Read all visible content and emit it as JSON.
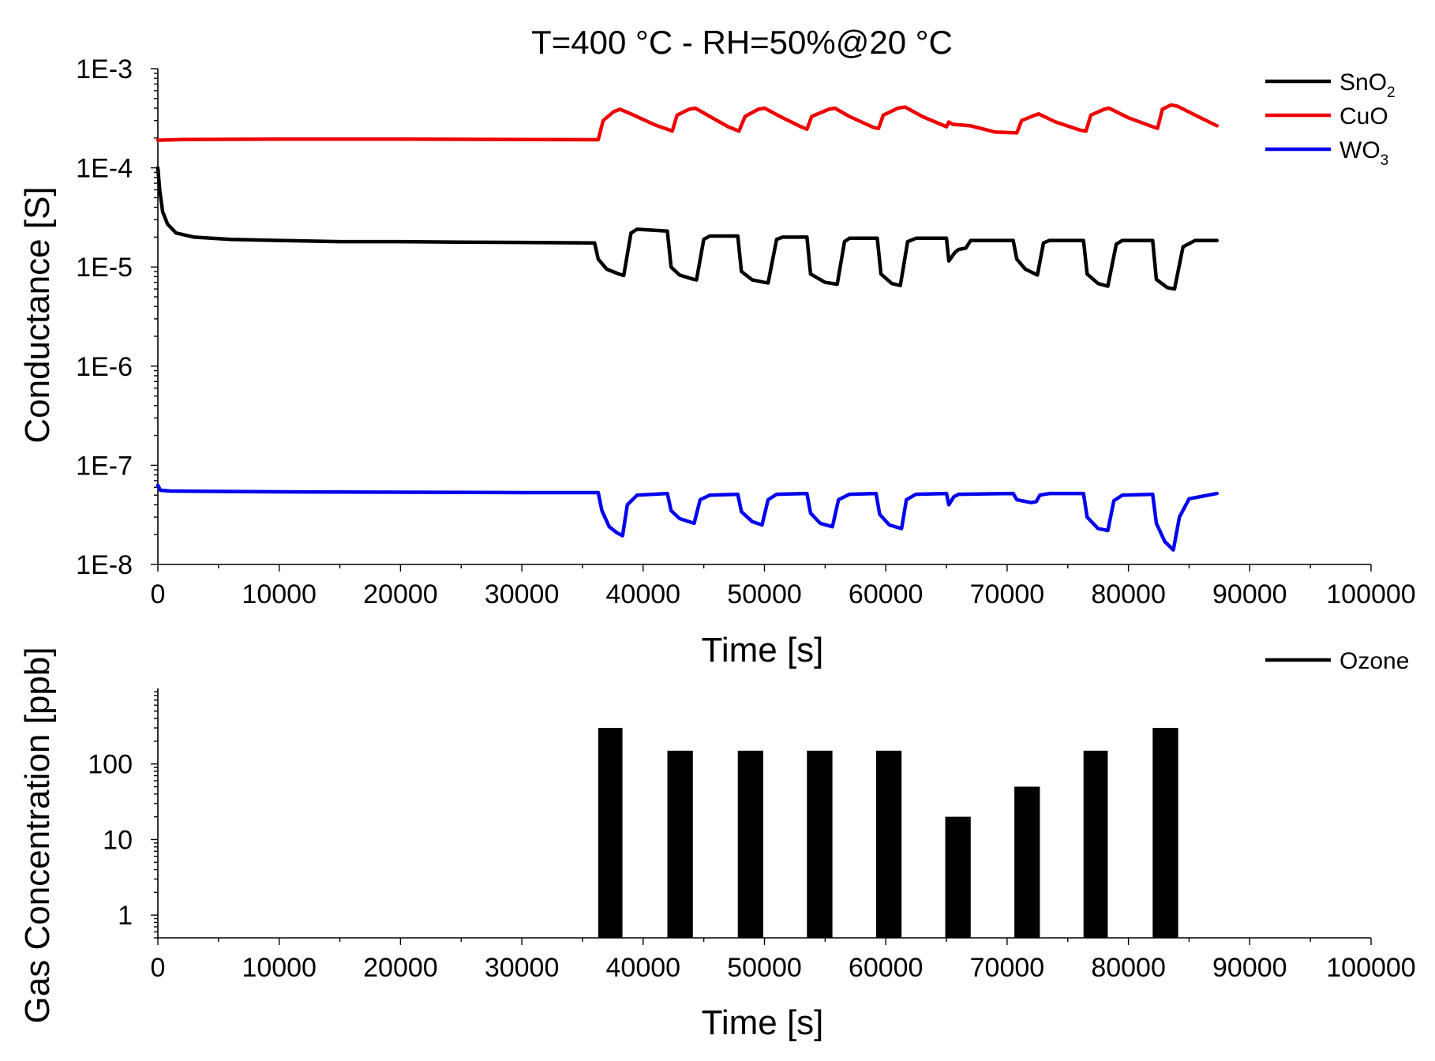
{
  "chart_data": [
    {
      "type": "line",
      "title": "T=400 °C - RH=50%@20 °C",
      "xlabel": "Time [s]",
      "ylabel": "Conductance [S]",
      "xlim": [
        0,
        100000
      ],
      "ylim": [
        1e-08,
        0.001
      ],
      "yscale": "log",
      "grid": false,
      "legend_position": "top-right",
      "x_ticks": [
        "0",
        "10000",
        "20000",
        "30000",
        "40000",
        "50000",
        "60000",
        "70000",
        "80000",
        "90000",
        "100000"
      ],
      "y_ticks": [
        "1E-3",
        "1E-4",
        "1E-5",
        "1E-6",
        "1E-7",
        "1E-8"
      ],
      "series": [
        {
          "name": "SnO2",
          "label_base": "SnO",
          "label_sub": "2",
          "color": "#000000",
          "points": [
            [
              0,
              0.0001
            ],
            [
              150,
              6e-05
            ],
            [
              400,
              3.6e-05
            ],
            [
              800,
              2.7e-05
            ],
            [
              1500,
              2.2e-05
            ],
            [
              3000,
              2e-05
            ],
            [
              6000,
              1.9e-05
            ],
            [
              10000,
              1.85e-05
            ],
            [
              15000,
              1.8e-05
            ],
            [
              20000,
              1.8e-05
            ],
            [
              25000,
              1.78e-05
            ],
            [
              30000,
              1.77e-05
            ],
            [
              36000,
              1.75e-05
            ],
            [
              36300,
              1.2e-05
            ],
            [
              37000,
              9.5e-06
            ],
            [
              38000,
              8.5e-06
            ],
            [
              38400,
              8.2e-06
            ],
            [
              39000,
              2.2e-05
            ],
            [
              39500,
              2.4e-05
            ],
            [
              42000,
              2.3e-05
            ],
            [
              42300,
              1e-05
            ],
            [
              43000,
              8.3e-06
            ],
            [
              44000,
              7.6e-06
            ],
            [
              44400,
              7.4e-06
            ],
            [
              45000,
              1.9e-05
            ],
            [
              45500,
              2.05e-05
            ],
            [
              47800,
              2.05e-05
            ],
            [
              48100,
              9e-06
            ],
            [
              49000,
              7.4e-06
            ],
            [
              50000,
              7e-06
            ],
            [
              50300,
              6.9e-06
            ],
            [
              51000,
              1.9e-05
            ],
            [
              51500,
              2e-05
            ],
            [
              53500,
              2e-05
            ],
            [
              53800,
              8.5e-06
            ],
            [
              55000,
              7e-06
            ],
            [
              56000,
              6.7e-06
            ],
            [
              56600,
              1.8e-05
            ],
            [
              57000,
              1.95e-05
            ],
            [
              59300,
              1.95e-05
            ],
            [
              59600,
              8.5e-06
            ],
            [
              60500,
              6.8e-06
            ],
            [
              61200,
              6.5e-06
            ],
            [
              61800,
              1.8e-05
            ],
            [
              62500,
              1.95e-05
            ],
            [
              65000,
              1.95e-05
            ],
            [
              65200,
              1.15e-05
            ],
            [
              65700,
              1.4e-05
            ],
            [
              66000,
              1.5e-05
            ],
            [
              66600,
              1.55e-05
            ],
            [
              67000,
              1.85e-05
            ],
            [
              70500,
              1.85e-05
            ],
            [
              70800,
              1.2e-05
            ],
            [
              71500,
              9.5e-06
            ],
            [
              72500,
              8.3e-06
            ],
            [
              73000,
              1.75e-05
            ],
            [
              73500,
              1.85e-05
            ],
            [
              76300,
              1.85e-05
            ],
            [
              76600,
              8.5e-06
            ],
            [
              77500,
              6.8e-06
            ],
            [
              78300,
              6.4e-06
            ],
            [
              79000,
              1.7e-05
            ],
            [
              79500,
              1.85e-05
            ],
            [
              82000,
              1.85e-05
            ],
            [
              82300,
              7.5e-06
            ],
            [
              83200,
              6.2e-06
            ],
            [
              83800,
              6e-06
            ],
            [
              84500,
              1.6e-05
            ],
            [
              85500,
              1.85e-05
            ],
            [
              87300,
              1.85e-05
            ]
          ]
        },
        {
          "name": "CuO",
          "label_base": "CuO",
          "label_sub": "",
          "color": "#ee0000",
          "points": [
            [
              0,
              0.00019
            ],
            [
              2000,
              0.000193
            ],
            [
              10000,
              0.000195
            ],
            [
              20000,
              0.000195
            ],
            [
              30000,
              0.000193
            ],
            [
              36300,
              0.000192
            ],
            [
              36700,
              0.0003
            ],
            [
              37600,
              0.00037
            ],
            [
              38100,
              0.00039
            ],
            [
              39000,
              0.00035
            ],
            [
              41000,
              0.00027
            ],
            [
              42000,
              0.000245
            ],
            [
              42400,
              0.000235
            ],
            [
              42800,
              0.00034
            ],
            [
              43800,
              0.00039
            ],
            [
              44300,
              0.0004
            ],
            [
              45500,
              0.00033
            ],
            [
              47000,
              0.00026
            ],
            [
              47900,
              0.000235
            ],
            [
              48400,
              0.00033
            ],
            [
              49500,
              0.00039
            ],
            [
              50000,
              0.0004
            ],
            [
              51500,
              0.00032
            ],
            [
              53000,
              0.00026
            ],
            [
              53500,
              0.000245
            ],
            [
              53900,
              0.00033
            ],
            [
              55300,
              0.00039
            ],
            [
              55800,
              0.0004
            ],
            [
              57000,
              0.00033
            ],
            [
              59000,
              0.000255
            ],
            [
              59400,
              0.00025
            ],
            [
              59800,
              0.00034
            ],
            [
              61000,
              0.0004
            ],
            [
              61600,
              0.00041
            ],
            [
              63000,
              0.00033
            ],
            [
              65000,
              0.00026
            ],
            [
              65200,
              0.00029
            ],
            [
              65500,
              0.000275
            ],
            [
              67000,
              0.000265
            ],
            [
              69000,
              0.00023
            ],
            [
              70800,
              0.000225
            ],
            [
              71200,
              0.0003
            ],
            [
              72300,
              0.00034
            ],
            [
              72600,
              0.00035
            ],
            [
              74000,
              0.00029
            ],
            [
              76000,
              0.00024
            ],
            [
              76500,
              0.000235
            ],
            [
              76900,
              0.00034
            ],
            [
              78000,
              0.00039
            ],
            [
              78400,
              0.0004
            ],
            [
              80000,
              0.00032
            ],
            [
              82000,
              0.00026
            ],
            [
              82400,
              0.00025
            ],
            [
              82800,
              0.00039
            ],
            [
              83500,
              0.00043
            ],
            [
              84000,
              0.00042
            ],
            [
              85500,
              0.00034
            ],
            [
              87300,
              0.000265
            ]
          ]
        },
        {
          "name": "WO3",
          "label_base": "WO",
          "label_sub": "3",
          "color": "#0000ee",
          "points": [
            [
              0,
              6.3e-08
            ],
            [
              200,
              5.6e-08
            ],
            [
              1000,
              5.5e-08
            ],
            [
              5000,
              5.45e-08
            ],
            [
              10000,
              5.4e-08
            ],
            [
              20000,
              5.35e-08
            ],
            [
              30000,
              5.3e-08
            ],
            [
              36300,
              5.3e-08
            ],
            [
              36600,
              3.5e-08
            ],
            [
              37200,
              2.4e-08
            ],
            [
              37800,
              2.1e-08
            ],
            [
              38300,
              1.95e-08
            ],
            [
              38700,
              4e-08
            ],
            [
              39500,
              5e-08
            ],
            [
              42000,
              5.2e-08
            ],
            [
              42300,
              3.5e-08
            ],
            [
              43000,
              2.9e-08
            ],
            [
              44200,
              2.6e-08
            ],
            [
              44700,
              4.5e-08
            ],
            [
              45500,
              5e-08
            ],
            [
              47800,
              5.1e-08
            ],
            [
              48100,
              3.4e-08
            ],
            [
              49000,
              2.7e-08
            ],
            [
              49800,
              2.5e-08
            ],
            [
              50300,
              4.5e-08
            ],
            [
              51000,
              5.1e-08
            ],
            [
              53500,
              5.2e-08
            ],
            [
              53800,
              3.3e-08
            ],
            [
              54600,
              2.6e-08
            ],
            [
              55600,
              2.4e-08
            ],
            [
              56100,
              4.5e-08
            ],
            [
              57000,
              5.1e-08
            ],
            [
              59200,
              5.2e-08
            ],
            [
              59500,
              3.2e-08
            ],
            [
              60300,
              2.5e-08
            ],
            [
              61300,
              2.3e-08
            ],
            [
              61700,
              4.5e-08
            ],
            [
              62500,
              5.1e-08
            ],
            [
              65000,
              5.2e-08
            ],
            [
              65200,
              4e-08
            ],
            [
              65600,
              4.8e-08
            ],
            [
              66000,
              5.1e-08
            ],
            [
              70500,
              5.2e-08
            ],
            [
              70800,
              4.5e-08
            ],
            [
              72000,
              4.2e-08
            ],
            [
              72400,
              4.3e-08
            ],
            [
              72700,
              5e-08
            ],
            [
              73500,
              5.2e-08
            ],
            [
              76300,
              5.2e-08
            ],
            [
              76600,
              3e-08
            ],
            [
              77500,
              2.3e-08
            ],
            [
              78300,
              2.2e-08
            ],
            [
              78800,
              4.4e-08
            ],
            [
              79500,
              5e-08
            ],
            [
              82000,
              5.1e-08
            ],
            [
              82300,
              2.6e-08
            ],
            [
              83000,
              1.7e-08
            ],
            [
              83700,
              1.4e-08
            ],
            [
              84200,
              3e-08
            ],
            [
              85000,
              4.6e-08
            ],
            [
              87300,
              5.2e-08
            ]
          ]
        }
      ]
    },
    {
      "type": "bar",
      "xlabel": "Time [s]",
      "ylabel": "Gas Concentration [ppb]",
      "xlim": [
        0,
        100000
      ],
      "ylim": [
        0.5,
        1000
      ],
      "yscale": "log",
      "grid": false,
      "legend_position": "top-right",
      "x_ticks": [
        "0",
        "10000",
        "20000",
        "30000",
        "40000",
        "50000",
        "60000",
        "70000",
        "80000",
        "90000",
        "100000"
      ],
      "y_ticks": [
        "1",
        "10",
        "100"
      ],
      "y_tick_values": [
        1,
        10,
        100
      ],
      "series": [
        {
          "name": "Ozone",
          "color": "#000000",
          "bars": [
            {
              "start": 36300,
              "end": 38300,
              "value": 300
            },
            {
              "start": 42000,
              "end": 44100,
              "value": 150
            },
            {
              "start": 47800,
              "end": 49900,
              "value": 150
            },
            {
              "start": 53500,
              "end": 55600,
              "value": 150
            },
            {
              "start": 59200,
              "end": 61300,
              "value": 150
            },
            {
              "start": 64900,
              "end": 67000,
              "value": 20
            },
            {
              "start": 70600,
              "end": 72700,
              "value": 50
            },
            {
              "start": 76300,
              "end": 78300,
              "value": 150
            },
            {
              "start": 82000,
              "end": 84100,
              "value": 300
            }
          ]
        }
      ]
    }
  ]
}
